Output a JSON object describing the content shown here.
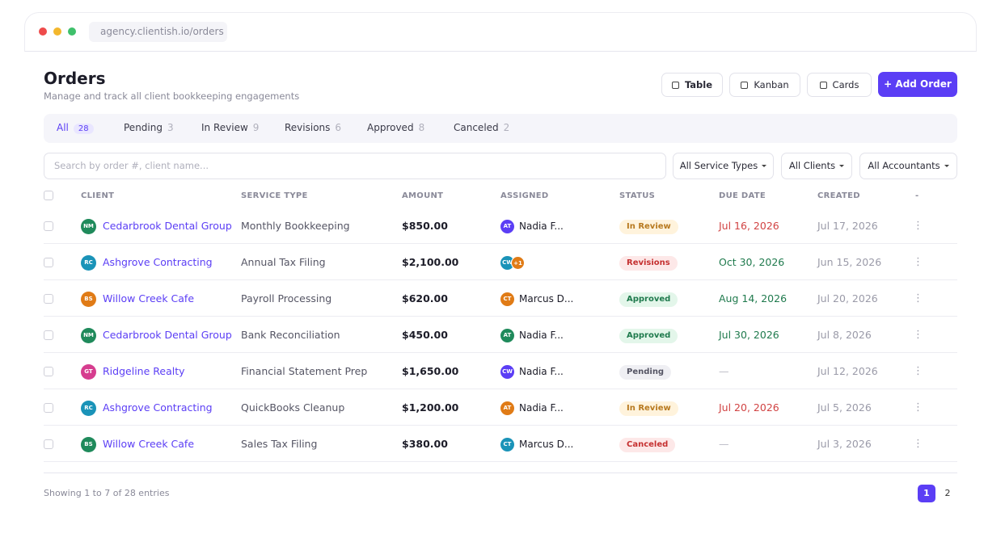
{
  "browser": {
    "url": "agency.clientish.io/orders"
  },
  "header": {
    "title": "Orders",
    "subtitle": "Manage and track all client bookkeeping engagements"
  },
  "views": [
    "Table",
    "Kanban",
    "Cards"
  ],
  "add_button": "+ Add Order",
  "tabs": [
    {
      "label": "All",
      "count": "28"
    },
    {
      "label": "Pending",
      "count": "3"
    },
    {
      "label": "In Review",
      "count": "9"
    },
    {
      "label": "Revisions",
      "count": "6"
    },
    {
      "label": "Approved",
      "count": "8"
    },
    {
      "label": "Canceled",
      "count": "2"
    }
  ],
  "search": {
    "placeholder": "Search by order #, client name..."
  },
  "filters": [
    "All Service Types",
    "All Clients",
    "All Accountants"
  ],
  "table": {
    "columns": [
      "CLIENT",
      "SERVICE TYPE",
      "AMOUNT",
      "ASSIGNED",
      "STATUS",
      "DUE DATE",
      "CREATED",
      "-"
    ],
    "rows": [
      {
        "initials": "NM",
        "avatar_color": "#1f8a5b",
        "client": "Cedarbrook Dental Group",
        "service": "Monthly Bookkeeping",
        "amount": "$850.00",
        "assigned": [
          {
            "initials": "AT",
            "color": "#5b3ef5"
          }
        ],
        "assignee": "Nadia F...",
        "status": "In Review",
        "due": "Jul 16, 2026",
        "due_color": "#d14343",
        "created": "Jul 17, 2026"
      },
      {
        "initials": "RC",
        "avatar_color": "#1a93b8",
        "client": "Ashgrove Contracting",
        "service": "Annual Tax Filing",
        "amount": "$2,100.00",
        "assigned": [
          {
            "initials": "CW",
            "color": "#1a93b8"
          },
          {
            "initials": "+1",
            "color": "#e07b16"
          }
        ],
        "status": "Revisions",
        "due": "Oct 30, 2026",
        "due_color": "#1f7a4d",
        "created": "Jun 15, 2026"
      },
      {
        "initials": "BS",
        "avatar_color": "#e07b16",
        "client": "Willow Creek Cafe",
        "service": "Payroll Processing",
        "amount": "$620.00",
        "assigned": [
          {
            "initials": "CT",
            "color": "#e07b16"
          }
        ],
        "assignee": "Marcus D...",
        "status": "Approved",
        "due": "Aug 14, 2026",
        "due_color": "#1f7a4d",
        "created": "Jul 20, 2026"
      },
      {
        "initials": "NM",
        "avatar_color": "#1f8a5b",
        "client": "Cedarbrook Dental Group",
        "service": "Bank Reconciliation",
        "amount": "$450.00",
        "assigned": [
          {
            "initials": "AT",
            "color": "#1f8a5b"
          }
        ],
        "assignee": "Nadia F...",
        "status": "Approved",
        "due": "Jul 30, 2026",
        "due_color": "#1f7a4d",
        "created": "Jul 8, 2026"
      },
      {
        "initials": "GT",
        "avatar_color": "#d63d8f",
        "client": "Ridgeline Realty",
        "service": "Financial Statement Prep",
        "amount": "$1,650.00",
        "assigned": [
          {
            "initials": "CW",
            "color": "#5b3ef5"
          }
        ],
        "assignee": "Nadia F...",
        "status": "Pending",
        "due": "—",
        "due_color": "#b8b8c4",
        "created": "Jul 12, 2026"
      },
      {
        "initials": "RC",
        "avatar_color": "#1a93b8",
        "client": "Ashgrove Contracting",
        "service": "QuickBooks Cleanup",
        "amount": "$1,200.00",
        "assigned": [
          {
            "initials": "AT",
            "color": "#e07b16"
          }
        ],
        "assignee": "Nadia F...",
        "status": "In Review",
        "due": "Jul 20, 2026",
        "due_color": "#d14343",
        "created": "Jul 5, 2026"
      },
      {
        "initials": "BS",
        "avatar_color": "#1f8a5b",
        "client": "Willow Creek Cafe",
        "service": "Sales Tax Filing",
        "amount": "$380.00",
        "assigned": [
          {
            "initials": "CT",
            "color": "#1a93b8"
          }
        ],
        "assignee": "Marcus D...",
        "status": "Canceled",
        "due": "—",
        "due_color": "#b8b8c4",
        "created": "Jul 3, 2026"
      }
    ]
  },
  "footer": {
    "showing": "Showing 1 to 7 of 28 entries",
    "pages": [
      "1",
      "2"
    ]
  }
}
